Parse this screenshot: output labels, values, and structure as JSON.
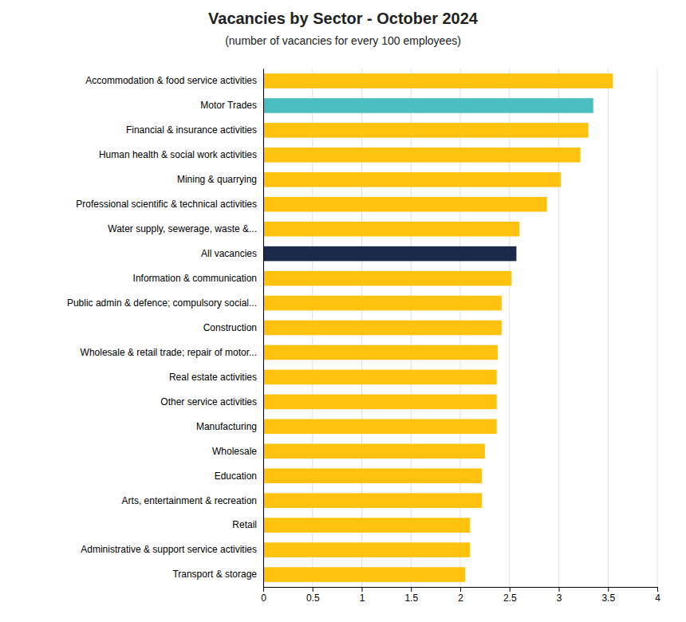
{
  "chart_data": {
    "type": "bar",
    "orientation": "horizontal",
    "title": "Vacancies by Sector  - October 2024",
    "subtitle": "(number of vacancies for every 100 employees)",
    "categories": [
      "Accommodation & food service activities",
      "Motor Trades",
      "Financial & insurance activities",
      "Human health & social work activities",
      "Mining & quarrying",
      "Professional scientific & technical activities",
      "Water supply, sewerage, waste &...",
      "All vacancies",
      "Information & communication",
      "Public admin & defence; compulsory social...",
      "Construction",
      "Wholesale & retail trade; repair of motor...",
      "Real estate activities",
      "Other service activities",
      "Manufacturing",
      "Wholesale",
      "Education",
      "Arts, entertainment & recreation",
      "Retail",
      "Administrative & support service activities",
      "Transport & storage"
    ],
    "values": [
      3.55,
      3.35,
      3.3,
      3.22,
      3.02,
      2.88,
      2.6,
      2.57,
      2.52,
      2.42,
      2.42,
      2.38,
      2.37,
      2.37,
      2.37,
      2.25,
      2.22,
      2.22,
      2.1,
      2.1,
      2.05
    ],
    "colors": [
      "#FFC20E",
      "#4BBFBF",
      "#FFC20E",
      "#FFC20E",
      "#FFC20E",
      "#FFC20E",
      "#FFC20E",
      "#1B2A4A",
      "#FFC20E",
      "#FFC20E",
      "#FFC20E",
      "#FFC20E",
      "#FFC20E",
      "#FFC20E",
      "#FFC20E",
      "#FFC20E",
      "#FFC20E",
      "#FFC20E",
      "#FFC20E",
      "#FFC20E",
      "#FFC20E"
    ],
    "xlim": [
      0,
      4
    ],
    "xticks": [
      0,
      0.5,
      1,
      1.5,
      2,
      2.5,
      3,
      3.5,
      4
    ],
    "grid": true
  }
}
